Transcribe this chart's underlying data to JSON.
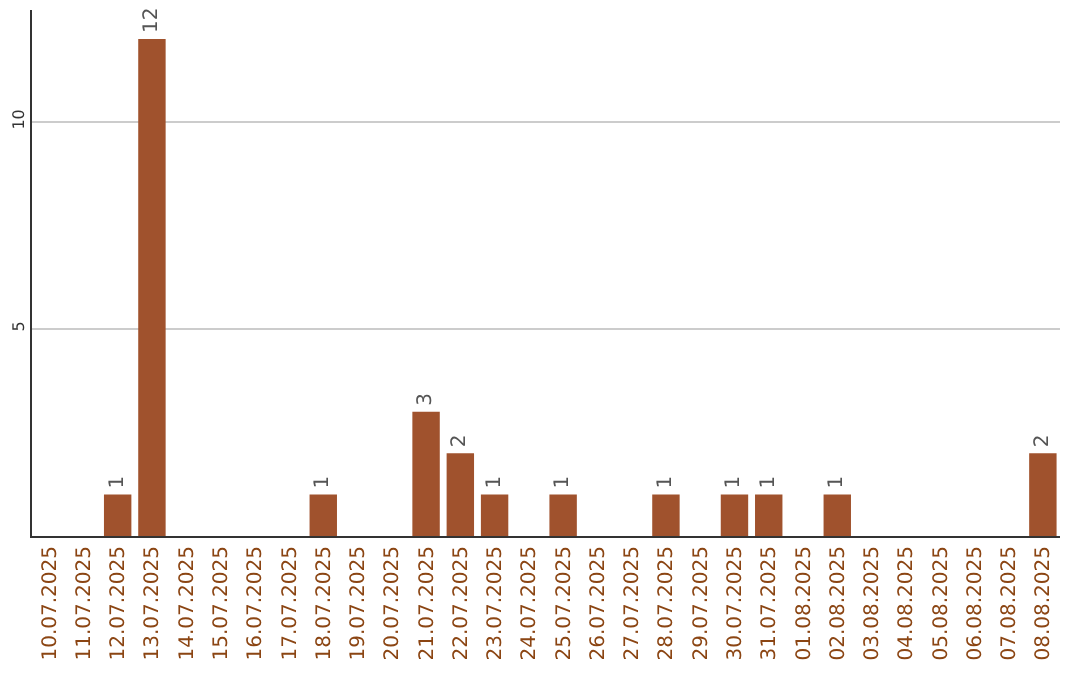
{
  "chart_data": {
    "type": "bar",
    "categories": [
      "10.07.2025",
      "11.07.2025",
      "12.07.2025",
      "13.07.2025",
      "14.07.2025",
      "15.07.2025",
      "16.07.2025",
      "17.07.2025",
      "18.07.2025",
      "19.07.2025",
      "20.07.2025",
      "21.07.2025",
      "22.07.2025",
      "23.07.2025",
      "24.07.2025",
      "25.07.2025",
      "26.07.2025",
      "27.07.2025",
      "28.07.2025",
      "29.07.2025",
      "30.07.2025",
      "31.07.2025",
      "01.08.2025",
      "02.08.2025",
      "03.08.2025",
      "04.08.2025",
      "05.08.2025",
      "06.08.2025",
      "07.08.2025",
      "08.08.2025"
    ],
    "values": [
      0,
      0,
      1,
      12,
      0,
      0,
      0,
      0,
      1,
      0,
      0,
      3,
      2,
      1,
      0,
      1,
      0,
      0,
      1,
      0,
      1,
      1,
      0,
      1,
      0,
      0,
      0,
      0,
      0,
      2
    ],
    "value_labels": [
      null,
      null,
      "1",
      "12",
      null,
      null,
      null,
      null,
      "1",
      null,
      null,
      "3",
      "2",
      "1",
      null,
      "1",
      null,
      null,
      "1",
      null,
      "1",
      "1",
      null,
      "1",
      null,
      null,
      null,
      null,
      null,
      "2"
    ],
    "color": "#a0522d",
    "ylim": [
      0,
      12.7
    ],
    "yticks": [
      5,
      10
    ],
    "grid": "y",
    "legend": false
  }
}
